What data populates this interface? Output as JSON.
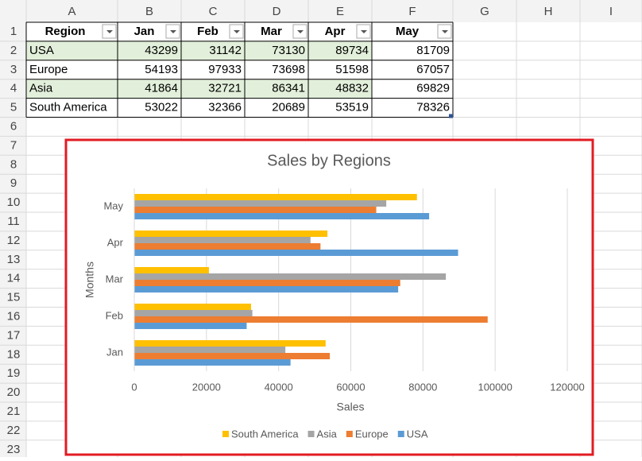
{
  "spreadsheet": {
    "columns": [
      "A",
      "B",
      "C",
      "D",
      "E",
      "F",
      "G",
      "H",
      "I"
    ],
    "rows": [
      1,
      2,
      3,
      4,
      5,
      6,
      7,
      8,
      9,
      10,
      11,
      12,
      13,
      14,
      15,
      16,
      17,
      18,
      19,
      20,
      21,
      22,
      23
    ],
    "table": {
      "header": [
        "Region",
        "Jan",
        "Feb",
        "Mar",
        "Apr",
        "May"
      ],
      "rows": [
        [
          "USA",
          43299,
          31142,
          73130,
          89734,
          81709
        ],
        [
          "Europe",
          54193,
          97933,
          73698,
          51598,
          67057
        ],
        [
          "Asia",
          41864,
          32721,
          86341,
          48832,
          69829
        ],
        [
          "South America",
          53022,
          32366,
          20689,
          53519,
          78326
        ]
      ]
    }
  },
  "chart_data": {
    "type": "hbar",
    "title": "Sales by Regions",
    "x_label": "Sales",
    "y_label": "Months",
    "categories": [
      "Jan",
      "Feb",
      "Mar",
      "Apr",
      "May"
    ],
    "series": [
      {
        "name": "South America",
        "color": "#ffc000",
        "values": [
          53022,
          32366,
          20689,
          53519,
          78326
        ]
      },
      {
        "name": "Asia",
        "color": "#a5a5a5",
        "values": [
          41864,
          32721,
          86341,
          48832,
          69829
        ]
      },
      {
        "name": "Europe",
        "color": "#ed7d31",
        "values": [
          54193,
          97933,
          73698,
          51598,
          67057
        ]
      },
      {
        "name": "USA",
        "color": "#5b9bd5",
        "values": [
          43299,
          31142,
          73130,
          89734,
          81709
        ]
      }
    ],
    "xlim": [
      0,
      120000
    ],
    "xticks": [
      0,
      20000,
      40000,
      60000,
      80000,
      100000,
      120000
    ],
    "grid": true,
    "legend": "bottom"
  }
}
